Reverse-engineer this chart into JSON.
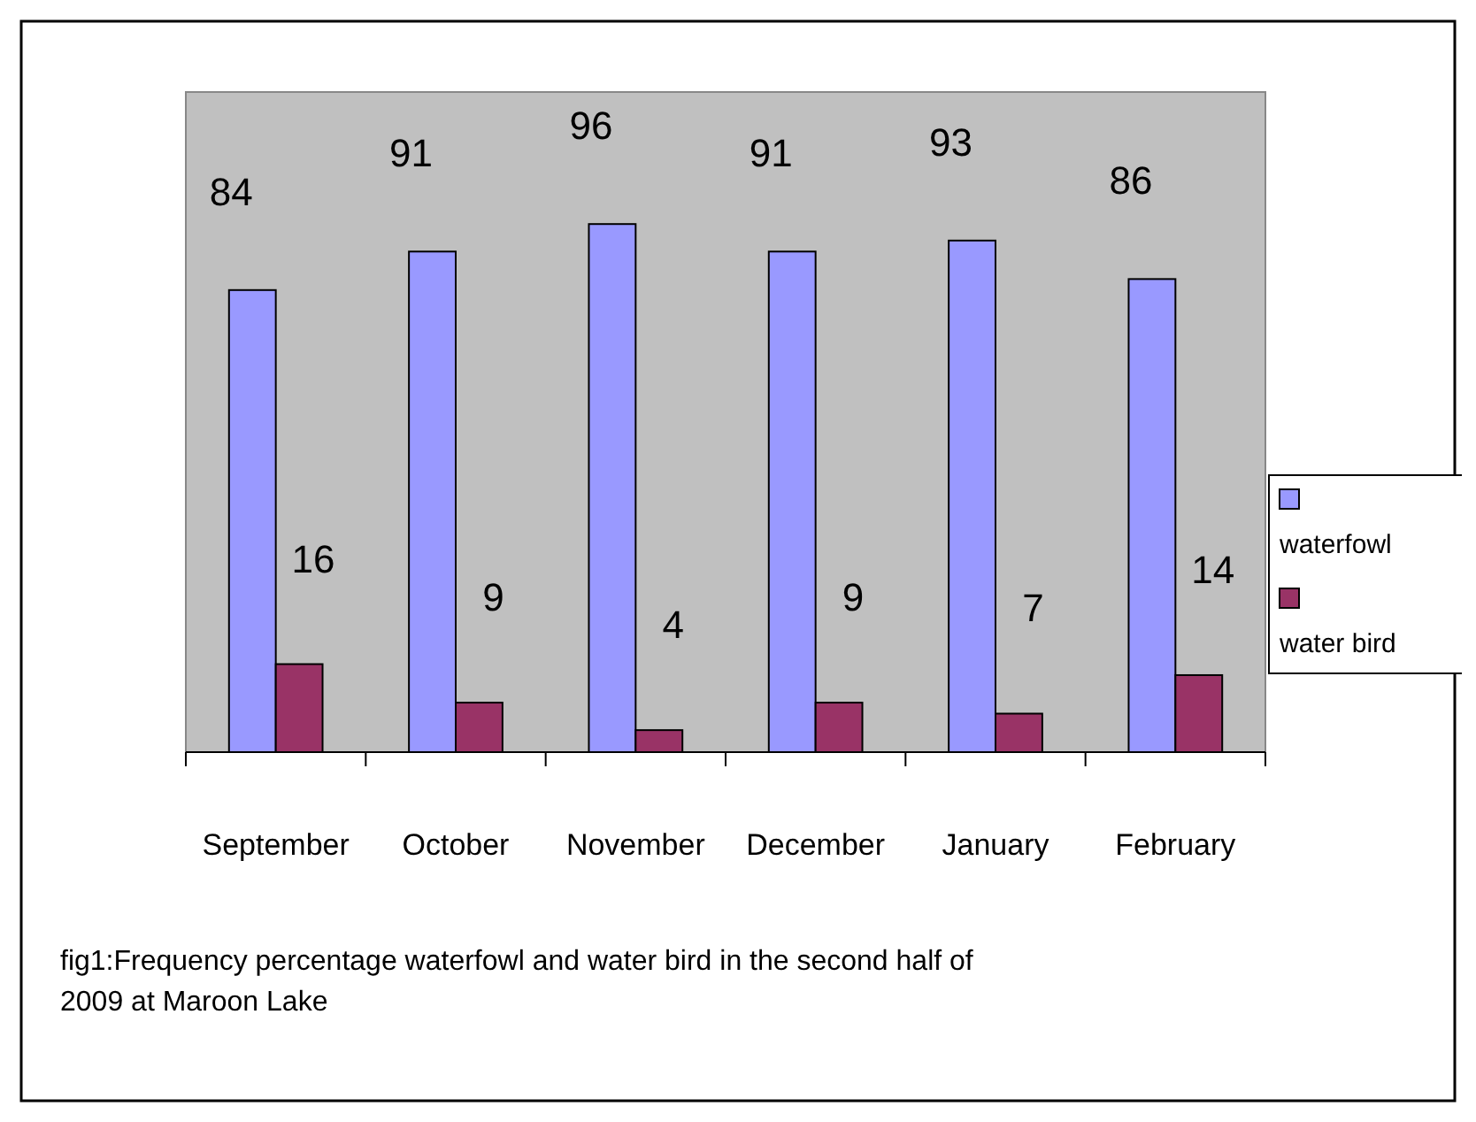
{
  "chart_data": {
    "type": "bar",
    "categories": [
      "September",
      "October",
      "November",
      "December",
      "January",
      "February"
    ],
    "series": [
      {
        "name": "waterfowl",
        "color": "#9999ff",
        "values": [
          84,
          91,
          96,
          91,
          93,
          86
        ]
      },
      {
        "name": "water bird",
        "color": "#993366",
        "values": [
          16,
          9,
          4,
          9,
          7,
          14
        ]
      }
    ],
    "data_labels": true,
    "legend": "right",
    "grid": false,
    "annotations": [
      "fig1:Frequency percentage waterfowl and water bird in the second half of 2009 at Maroon Lake"
    ]
  }
}
